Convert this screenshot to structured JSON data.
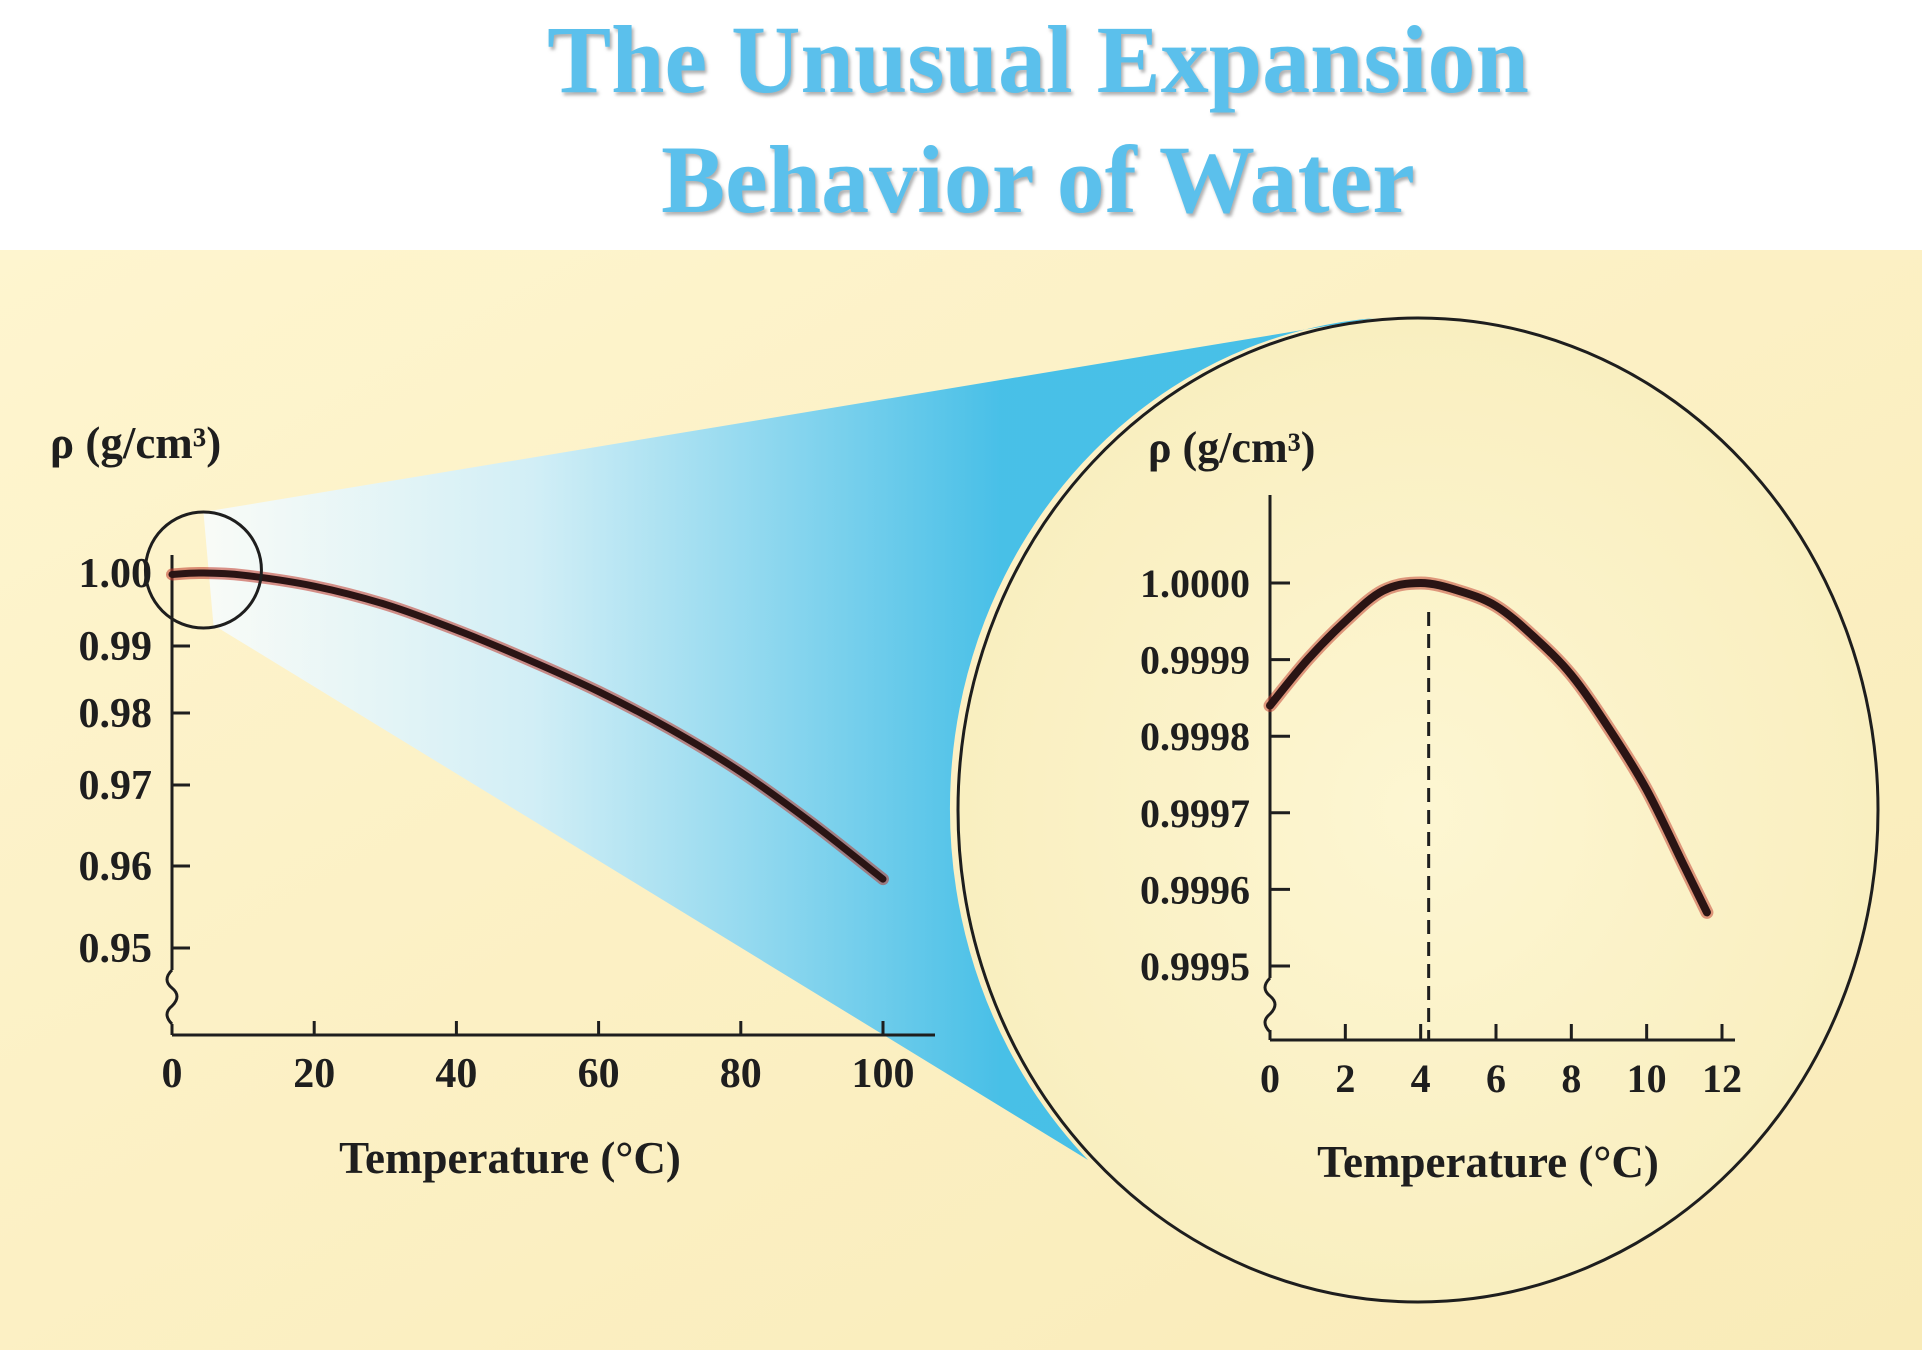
{
  "slide": {
    "title_line_1": "The Unusual Expansion",
    "title_line_2": "Behavior of Water"
  },
  "colors": {
    "title": "#5bc0ec",
    "panel_background": "#fcf1c4",
    "zoom_beam": "#55c5ee",
    "curve": "#2a1414",
    "curve_glow": "#c0392b",
    "axis": "#1e1e1e"
  },
  "chart_data": [
    {
      "type": "line",
      "ylabel": "ρ (g/cm³)",
      "xlabel": "Temperature (°C)",
      "xlim": [
        0,
        105
      ],
      "ylim": [
        0.94,
        1.0
      ],
      "x_ticks": [
        0,
        20,
        40,
        60,
        80,
        100
      ],
      "x_tick_labels": [
        "0",
        "20",
        "40",
        "60",
        "80",
        "100"
      ],
      "y_ticks": [
        0.95,
        0.96,
        0.97,
        0.98,
        0.99,
        1.0
      ],
      "y_tick_labels": [
        "0.95",
        "0.96",
        "0.97",
        "0.98",
        "0.99",
        "1.00"
      ],
      "axis_break": true,
      "highlight_circle_around": {
        "x": 4,
        "y": 1.0
      },
      "series": [
        {
          "x": [
            0,
            4,
            10,
            20,
            30,
            40,
            50,
            60,
            70,
            80,
            90,
            100
          ],
          "y": [
            0.9998,
            1.0,
            0.9997,
            0.9982,
            0.9957,
            0.9922,
            0.988,
            0.9832,
            0.9778,
            0.9718,
            0.9653,
            0.9584
          ]
        }
      ]
    },
    {
      "type": "line",
      "ylabel": "ρ (g/cm³)",
      "xlabel": "Temperature (°C)",
      "xlim": [
        0,
        12.8
      ],
      "ylim": [
        0.99943,
        1.00005
      ],
      "x_ticks": [
        0,
        2,
        4,
        6,
        8,
        10,
        12
      ],
      "x_tick_labels": [
        "0",
        "2",
        "4",
        "6",
        "8",
        "10",
        "12"
      ],
      "y_ticks": [
        0.9995,
        0.9996,
        0.9997,
        0.9998,
        0.9999,
        1.0
      ],
      "y_tick_labels": [
        "0.9995",
        "0.9996",
        "0.9997",
        "0.9998",
        "0.9999",
        "1.0000"
      ],
      "axis_break": true,
      "reference_line": {
        "x": 4,
        "style": "dashed"
      },
      "series": [
        {
          "x": [
            0,
            1,
            2,
            3,
            4,
            5,
            6,
            7,
            8,
            9,
            10,
            11,
            11.6
          ],
          "y": [
            0.99984,
            0.9999,
            0.99995,
            0.99999,
            1.0,
            0.99999,
            0.99997,
            0.99993,
            0.99988,
            0.99981,
            0.99973,
            0.99963,
            0.99957
          ]
        }
      ]
    }
  ]
}
